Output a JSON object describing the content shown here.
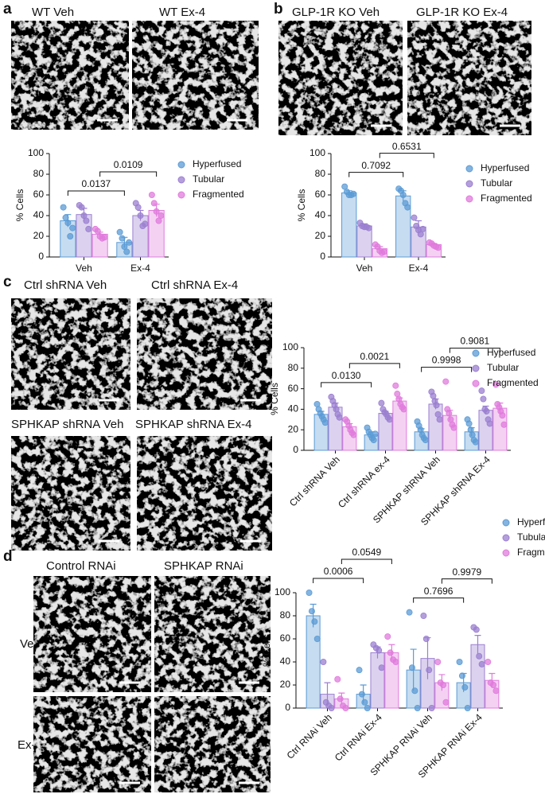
{
  "panels": [
    {
      "letter": "a",
      "images": [
        "WT Veh",
        "WT Ex-4"
      ]
    },
    {
      "letter": "b",
      "images": [
        "GLP-1R KO Veh",
        "GLP-1R KO Ex-4"
      ]
    },
    {
      "letter": "c",
      "images": [
        "Ctrl shRNA Veh",
        "Ctrl shRNA Ex-4",
        "SPHKAP shRNA Veh",
        "SPHKAP shRNA Ex-4"
      ]
    },
    {
      "letter": "d",
      "columns": [
        "Control RNAi",
        "SPHKAP RNAi"
      ],
      "rows": [
        "Veh",
        "Ex-4"
      ]
    }
  ],
  "chart_data": [
    {
      "type": "bar",
      "y_label": "% Cells",
      "categories": [
        "Veh",
        "Ex-4"
      ],
      "ylim": [
        0,
        100
      ],
      "yticks": [
        0,
        20,
        40,
        60,
        80,
        100
      ],
      "series": [
        {
          "name": "Hyperfused",
          "color": "#5b9bd5",
          "values": [
            35,
            14
          ],
          "errors": [
            6,
            5
          ],
          "points": [
            [
              48,
              38,
              33,
              20,
              28
            ],
            [
              24,
              18,
              10,
              5,
              14
            ]
          ]
        },
        {
          "name": "Tubular",
          "color": "#9b7fd0",
          "values": [
            41,
            40
          ],
          "errors": [
            6,
            5
          ],
          "points": [
            [
              50,
              48,
              40,
              35,
              27
            ],
            [
              52,
              48,
              40,
              30,
              32
            ]
          ]
        },
        {
          "name": "Fragmented",
          "color": "#e07bdc",
          "values": [
            22,
            45
          ],
          "errors": [
            2,
            6
          ],
          "points": [
            [
              27,
              25,
              20,
              18,
              19
            ],
            [
              60,
              52,
              44,
              35,
              40
            ]
          ]
        }
      ],
      "comparisons": [
        {
          "p": 0.0137,
          "series": "Hyperfused",
          "from": "Veh",
          "to": "Ex-4"
        },
        {
          "p": 0.0109,
          "series": "Fragmented",
          "from": "Veh",
          "to": "Ex-4"
        }
      ]
    },
    {
      "type": "bar",
      "y_label": "% Cells",
      "categories": [
        "Veh",
        "Ex-4"
      ],
      "ylim": [
        0,
        100
      ],
      "yticks": [
        0,
        20,
        40,
        60,
        80,
        100
      ],
      "series": [
        {
          "name": "Hyperfused",
          "color": "#5b9bd5",
          "values": [
            62,
            59
          ],
          "errors": [
            2,
            5
          ],
          "points": [
            [
              68,
              63,
              60,
              60,
              61
            ],
            [
              66,
              64,
              60,
              52,
              48
            ]
          ]
        },
        {
          "name": "Tubular",
          "color": "#9b7fd0",
          "values": [
            30,
            29
          ],
          "errors": [
            2,
            6
          ],
          "points": [
            [
              33,
              30,
              29,
              29,
              28
            ],
            [
              38,
              30,
              26,
              22,
              27
            ]
          ]
        },
        {
          "name": "Fragmented",
          "color": "#e07bdc",
          "values": [
            8,
            12
          ],
          "errors": [
            2,
            1
          ],
          "points": [
            [
              12,
              10,
              6,
              4,
              5
            ],
            [
              14,
              13,
              11,
              10,
              9
            ]
          ]
        }
      ],
      "comparisons": [
        {
          "p": 0.7092,
          "series": "Hyperfused",
          "from": "Veh",
          "to": "Ex-4"
        },
        {
          "p": 0.6531,
          "series": "Fragmented",
          "from": "Veh",
          "to": "Ex-4"
        }
      ]
    },
    {
      "type": "bar",
      "y_label": "% Cells",
      "categories": [
        "Ctrl shRNA Veh",
        "Ctrl shRNA ex-4",
        "SPHKAP shRNA Veh",
        "SPHKAP shRNA Ex-4"
      ],
      "ylim": [
        0,
        100
      ],
      "yticks": [
        0,
        20,
        40,
        60,
        80,
        100
      ],
      "series": [
        {
          "name": "Hyperfused",
          "color": "#5b9bd5",
          "values": [
            35,
            15,
            18,
            18
          ],
          "errors": [
            3,
            3,
            3,
            4
          ],
          "points": [
            [
              45,
              40,
              36,
              33,
              30,
              27
            ],
            [
              22,
              18,
              15,
              12,
              10,
              16
            ],
            [
              28,
              24,
              20,
              15,
              12,
              10
            ],
            [
              30,
              26,
              20,
              15,
              10,
              8
            ]
          ]
        },
        {
          "name": "Tubular",
          "color": "#9b7fd0",
          "values": [
            42,
            36,
            45,
            39
          ],
          "errors": [
            4,
            2,
            5,
            4
          ],
          "points": [
            [
              52,
              48,
              44,
              40,
              35,
              32
            ],
            [
              46,
              40,
              37,
              35,
              32,
              30
            ],
            [
              57,
              53,
              48,
              44,
              35,
              30
            ],
            [
              58,
              50,
              40,
              38,
              30,
              26
            ]
          ]
        },
        {
          "name": "Fragmented",
          "color": "#e07bdc",
          "values": [
            23,
            48,
            34,
            41
          ],
          "errors": [
            3,
            3,
            5,
            5
          ],
          "points": [
            [
              30,
              28,
              24,
              20,
              17,
              15
            ],
            [
              63,
              55,
              50,
              45,
              42,
              40
            ],
            [
              67,
              40,
              36,
              30,
              25,
              22
            ],
            [
              64,
              45,
              42,
              38,
              34,
              25
            ]
          ]
        }
      ],
      "comparisons": [
        {
          "p": {
            "value": 0.013,
            "label": "0.0130"
          },
          "series": "Hyperfused",
          "from": "Ctrl shRNA Veh",
          "to": "Ctrl shRNA ex-4"
        },
        {
          "p": 0.0021,
          "series": "Fragmented",
          "from": "Ctrl shRNA Veh",
          "to": "Ctrl shRNA ex-4"
        },
        {
          "p": 0.9998,
          "series": "Hyperfused",
          "from": "SPHKAP shRNA Veh",
          "to": "SPHKAP shRNA Ex-4"
        },
        {
          "p": 0.9081,
          "series": "Fragmented",
          "from": "SPHKAP shRNA Veh",
          "to": "SPHKAP shRNA Ex-4"
        }
      ]
    },
    {
      "type": "bar",
      "y_label": "% Cells",
      "categories": [
        "Ctrl RNAi Veh",
        "Ctrl RNAi Ex-4",
        "SPHKAP RNAi Veh",
        "SPHKAP RNAi Ex-4"
      ],
      "ylim": [
        0,
        100
      ],
      "yticks": [
        0,
        20,
        40,
        60,
        80,
        100
      ],
      "series": [
        {
          "name": "Hyperfused",
          "color": "#5b9bd5",
          "values": [
            80,
            12,
            33,
            22
          ],
          "errors": [
            10,
            8,
            18,
            8
          ],
          "points": [
            [
              100,
              84,
              75,
              60
            ],
            [
              33,
              12,
              5,
              0
            ],
            [
              83,
              35,
              15,
              0
            ],
            [
              40,
              28,
              18,
              0
            ]
          ]
        },
        {
          "name": "Tubular",
          "color": "#9b7fd0",
          "values": [
            12,
            48,
            43,
            55
          ],
          "errors": [
            10,
            5,
            18,
            8
          ],
          "points": [
            [
              40,
              5,
              2,
              0
            ],
            [
              55,
              52,
              50,
              35
            ],
            [
              80,
              60,
              33,
              0
            ],
            [
              70,
              68,
              45,
              38
            ]
          ]
        },
        {
          "name": "Fragmented",
          "color": "#e07bdc",
          "values": [
            8,
            48,
            22,
            24
          ],
          "errors": [
            5,
            7,
            7,
            6
          ],
          "points": [
            [
              25,
              8,
              2,
              0
            ],
            [
              62,
              48,
              42,
              40
            ],
            [
              40,
              22,
              20,
              5
            ],
            [
              40,
              22,
              20,
              15
            ]
          ]
        }
      ],
      "comparisons": [
        {
          "p": 0.0006,
          "series": "Hyperfused",
          "from": "Ctrl RNAi Veh",
          "to": "Ctrl RNAi Ex-4"
        },
        {
          "p": 0.0549,
          "series": "Fragmented",
          "from": "Ctrl RNAi Veh",
          "to": "Ctrl RNAi Ex-4"
        },
        {
          "p": 0.7696,
          "series": "Hyperfused",
          "from": "SPHKAP RNAi Veh",
          "to": "SPHKAP RNAi Ex-4"
        },
        {
          "p": 0.9979,
          "series": "Fragmented",
          "from": "SPHKAP RNAi Veh",
          "to": "SPHKAP RNAi Ex-4"
        }
      ]
    }
  ]
}
